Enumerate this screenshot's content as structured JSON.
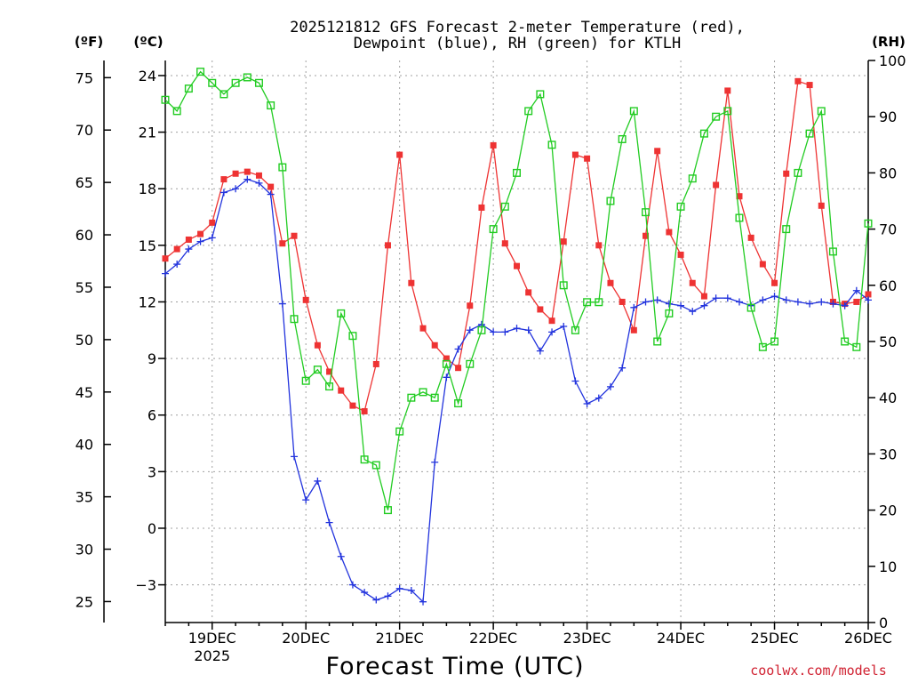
{
  "title_line1": "2025121812 GFS Forecast 2-meter Temperature (red),",
  "title_line2": "Dewpoint (blue), RH (green) for KTLH",
  "unit_f": "(ºF)",
  "unit_c": "(ºC)",
  "unit_rh": "(RH)",
  "credit": "coolwx.com/models",
  "colors": {
    "temperature": "#ee3333",
    "dewpoint": "#2233dd",
    "rh": "#22cc22",
    "grid": "#a0a0a0"
  },
  "chart_data": {
    "type": "line",
    "title": "2025121812 GFS Forecast 2-meter Temperature (red), Dewpoint (blue), RH (green) for KTLH",
    "xlabel": "Forecast Time (UTC)",
    "x_unit": "days since 2025-12-19 00Z",
    "xlim": [
      -0.5,
      7.0
    ],
    "x_ticks": [
      {
        "x": 0,
        "label": "19DEC",
        "label2": "2025"
      },
      {
        "x": 1,
        "label": "20DEC"
      },
      {
        "x": 2,
        "label": "21DEC"
      },
      {
        "x": 3,
        "label": "22DEC"
      },
      {
        "x": 4,
        "label": "23DEC"
      },
      {
        "x": 5,
        "label": "24DEC"
      },
      {
        "x": 6,
        "label": "25DEC"
      },
      {
        "x": 7,
        "label": "26DEC"
      }
    ],
    "ylabel_celsius": "ºC",
    "ylim_celsius": [
      -5,
      24.8
    ],
    "celsius_ticks": [
      24,
      21,
      18,
      15,
      12,
      9,
      6,
      3,
      0,
      -3
    ],
    "celsius_tick_labels": [
      "24",
      "21",
      "18",
      "15",
      "12",
      "9",
      "6",
      "3",
      "0",
      "−3"
    ],
    "fahrenheit_ticks": [
      75,
      70,
      65,
      60,
      55,
      50,
      45,
      40,
      35,
      30,
      25
    ],
    "rh_ylim": [
      0,
      100
    ],
    "rh_ticks": [
      100,
      90,
      80,
      70,
      60,
      50,
      40,
      30,
      20,
      10,
      0
    ],
    "series": [
      {
        "name": "Temperature",
        "unit": "C",
        "color": "#ee3333",
        "marker": "filled-square",
        "interval_hours": 3,
        "points": [
          [
            -0.5,
            14.3
          ],
          [
            -0.375,
            14.8
          ],
          [
            -0.25,
            15.3
          ],
          [
            -0.125,
            15.6
          ],
          [
            0,
            16.2
          ],
          [
            0.125,
            18.5
          ],
          [
            0.25,
            18.8
          ],
          [
            0.375,
            18.9
          ],
          [
            0.5,
            18.7
          ],
          [
            0.625,
            18.1
          ],
          [
            0.75,
            15.1
          ],
          [
            0.875,
            15.5
          ],
          [
            1.0,
            12.1
          ],
          [
            1.125,
            9.7
          ],
          [
            1.25,
            8.3
          ],
          [
            1.375,
            7.3
          ],
          [
            1.5,
            6.5
          ],
          [
            1.625,
            6.2
          ],
          [
            1.75,
            8.7
          ],
          [
            1.875,
            15.0
          ],
          [
            2.0,
            19.8
          ],
          [
            2.125,
            13.0
          ],
          [
            2.25,
            10.6
          ],
          [
            2.375,
            9.7
          ],
          [
            2.5,
            9.0
          ],
          [
            2.625,
            8.5
          ],
          [
            2.75,
            11.8
          ],
          [
            2.875,
            17.0
          ],
          [
            3.0,
            20.3
          ],
          [
            3.125,
            15.1
          ],
          [
            3.25,
            13.9
          ],
          [
            3.375,
            12.5
          ],
          [
            3.5,
            11.6
          ],
          [
            3.625,
            11.0
          ],
          [
            3.75,
            15.2
          ],
          [
            3.875,
            19.8
          ],
          [
            4.0,
            19.6
          ],
          [
            4.125,
            15.0
          ],
          [
            4.25,
            13.0
          ],
          [
            4.375,
            12.0
          ],
          [
            4.5,
            10.5
          ],
          [
            4.625,
            15.5
          ],
          [
            4.75,
            20.0
          ],
          [
            4.875,
            15.7
          ],
          [
            5.0,
            14.5
          ],
          [
            5.125,
            13.0
          ],
          [
            5.25,
            12.3
          ],
          [
            5.375,
            18.2
          ],
          [
            5.5,
            23.2
          ],
          [
            5.625,
            17.6
          ],
          [
            5.75,
            15.4
          ],
          [
            5.875,
            14.0
          ],
          [
            6.0,
            13.0
          ],
          [
            6.125,
            18.8
          ],
          [
            6.25,
            23.7
          ],
          [
            6.375,
            23.5
          ],
          [
            6.5,
            17.1
          ],
          [
            6.625,
            12.0
          ],
          [
            6.75,
            11.9
          ],
          [
            6.875,
            12.0
          ],
          [
            7.0,
            12.4
          ]
        ]
      },
      {
        "name": "Dewpoint",
        "unit": "C",
        "color": "#2233dd",
        "marker": "plus",
        "interval_hours": 3,
        "points": [
          [
            -0.5,
            13.5
          ],
          [
            -0.375,
            14.0
          ],
          [
            -0.25,
            14.8
          ],
          [
            -0.125,
            15.2
          ],
          [
            0,
            15.4
          ],
          [
            0.125,
            17.8
          ],
          [
            0.25,
            18.0
          ],
          [
            0.375,
            18.5
          ],
          [
            0.5,
            18.3
          ],
          [
            0.625,
            17.7
          ],
          [
            0.75,
            11.9
          ],
          [
            0.875,
            3.8
          ],
          [
            1.0,
            1.5
          ],
          [
            1.125,
            2.5
          ],
          [
            1.25,
            0.3
          ],
          [
            1.375,
            -1.5
          ],
          [
            1.5,
            -3.0
          ],
          [
            1.625,
            -3.4
          ],
          [
            1.75,
            -3.8
          ],
          [
            1.875,
            -3.6
          ],
          [
            2.0,
            -3.2
          ],
          [
            2.125,
            -3.3
          ],
          [
            2.25,
            -3.9
          ],
          [
            2.375,
            3.5
          ],
          [
            2.5,
            8.0
          ],
          [
            2.625,
            9.5
          ],
          [
            2.75,
            10.5
          ],
          [
            2.875,
            10.8
          ],
          [
            3.0,
            10.4
          ],
          [
            3.125,
            10.4
          ],
          [
            3.25,
            10.6
          ],
          [
            3.375,
            10.5
          ],
          [
            3.5,
            9.4
          ],
          [
            3.625,
            10.4
          ],
          [
            3.75,
            10.7
          ],
          [
            3.875,
            7.8
          ],
          [
            4.0,
            6.6
          ],
          [
            4.125,
            6.9
          ],
          [
            4.25,
            7.5
          ],
          [
            4.375,
            8.5
          ],
          [
            4.5,
            11.7
          ],
          [
            4.625,
            12.0
          ],
          [
            4.75,
            12.1
          ],
          [
            4.875,
            11.9
          ],
          [
            5.0,
            11.8
          ],
          [
            5.125,
            11.5
          ],
          [
            5.25,
            11.8
          ],
          [
            5.375,
            12.2
          ],
          [
            5.5,
            12.2
          ],
          [
            5.625,
            12.0
          ],
          [
            5.75,
            11.8
          ],
          [
            5.875,
            12.1
          ],
          [
            6.0,
            12.3
          ],
          [
            6.125,
            12.1
          ],
          [
            6.25,
            12.0
          ],
          [
            6.375,
            11.9
          ],
          [
            6.5,
            12.0
          ],
          [
            6.625,
            11.9
          ],
          [
            6.75,
            11.8
          ],
          [
            6.875,
            12.6
          ],
          [
            7.0,
            12.1
          ]
        ]
      },
      {
        "name": "RH",
        "unit": "%",
        "color": "#22cc22",
        "marker": "open-square",
        "interval_hours": 3,
        "points": [
          [
            -0.5,
            93
          ],
          [
            -0.375,
            91
          ],
          [
            -0.25,
            95
          ],
          [
            -0.125,
            98
          ],
          [
            0,
            96
          ],
          [
            0.125,
            94
          ],
          [
            0.25,
            96
          ],
          [
            0.375,
            97
          ],
          [
            0.5,
            96
          ],
          [
            0.625,
            92
          ],
          [
            0.75,
            81
          ],
          [
            0.875,
            54
          ],
          [
            1.0,
            43
          ],
          [
            1.125,
            45
          ],
          [
            1.25,
            42
          ],
          [
            1.375,
            55
          ],
          [
            1.5,
            51
          ],
          [
            1.625,
            29
          ],
          [
            1.75,
            28
          ],
          [
            1.875,
            20
          ],
          [
            2.0,
            34
          ],
          [
            2.125,
            40
          ],
          [
            2.25,
            41
          ],
          [
            2.375,
            40
          ],
          [
            2.5,
            46
          ],
          [
            2.625,
            39
          ],
          [
            2.75,
            46
          ],
          [
            2.875,
            52
          ],
          [
            3.0,
            70
          ],
          [
            3.125,
            74
          ],
          [
            3.25,
            80
          ],
          [
            3.375,
            91
          ],
          [
            3.5,
            94
          ],
          [
            3.625,
            85
          ],
          [
            3.75,
            60
          ],
          [
            3.875,
            52
          ],
          [
            4.0,
            57
          ],
          [
            4.125,
            57
          ],
          [
            4.25,
            75
          ],
          [
            4.375,
            86
          ],
          [
            4.5,
            91
          ],
          [
            4.625,
            73
          ],
          [
            4.75,
            50
          ],
          [
            4.875,
            55
          ],
          [
            5.0,
            74
          ],
          [
            5.125,
            79
          ],
          [
            5.25,
            87
          ],
          [
            5.375,
            90
          ],
          [
            5.5,
            91
          ],
          [
            5.625,
            72
          ],
          [
            5.75,
            56
          ],
          [
            5.875,
            49
          ],
          [
            6.0,
            50
          ],
          [
            6.125,
            70
          ],
          [
            6.25,
            80
          ],
          [
            6.375,
            87
          ],
          [
            6.5,
            91
          ],
          [
            6.625,
            66
          ],
          [
            6.75,
            50
          ],
          [
            6.875,
            49
          ],
          [
            7.0,
            71
          ]
        ]
      }
    ]
  }
}
